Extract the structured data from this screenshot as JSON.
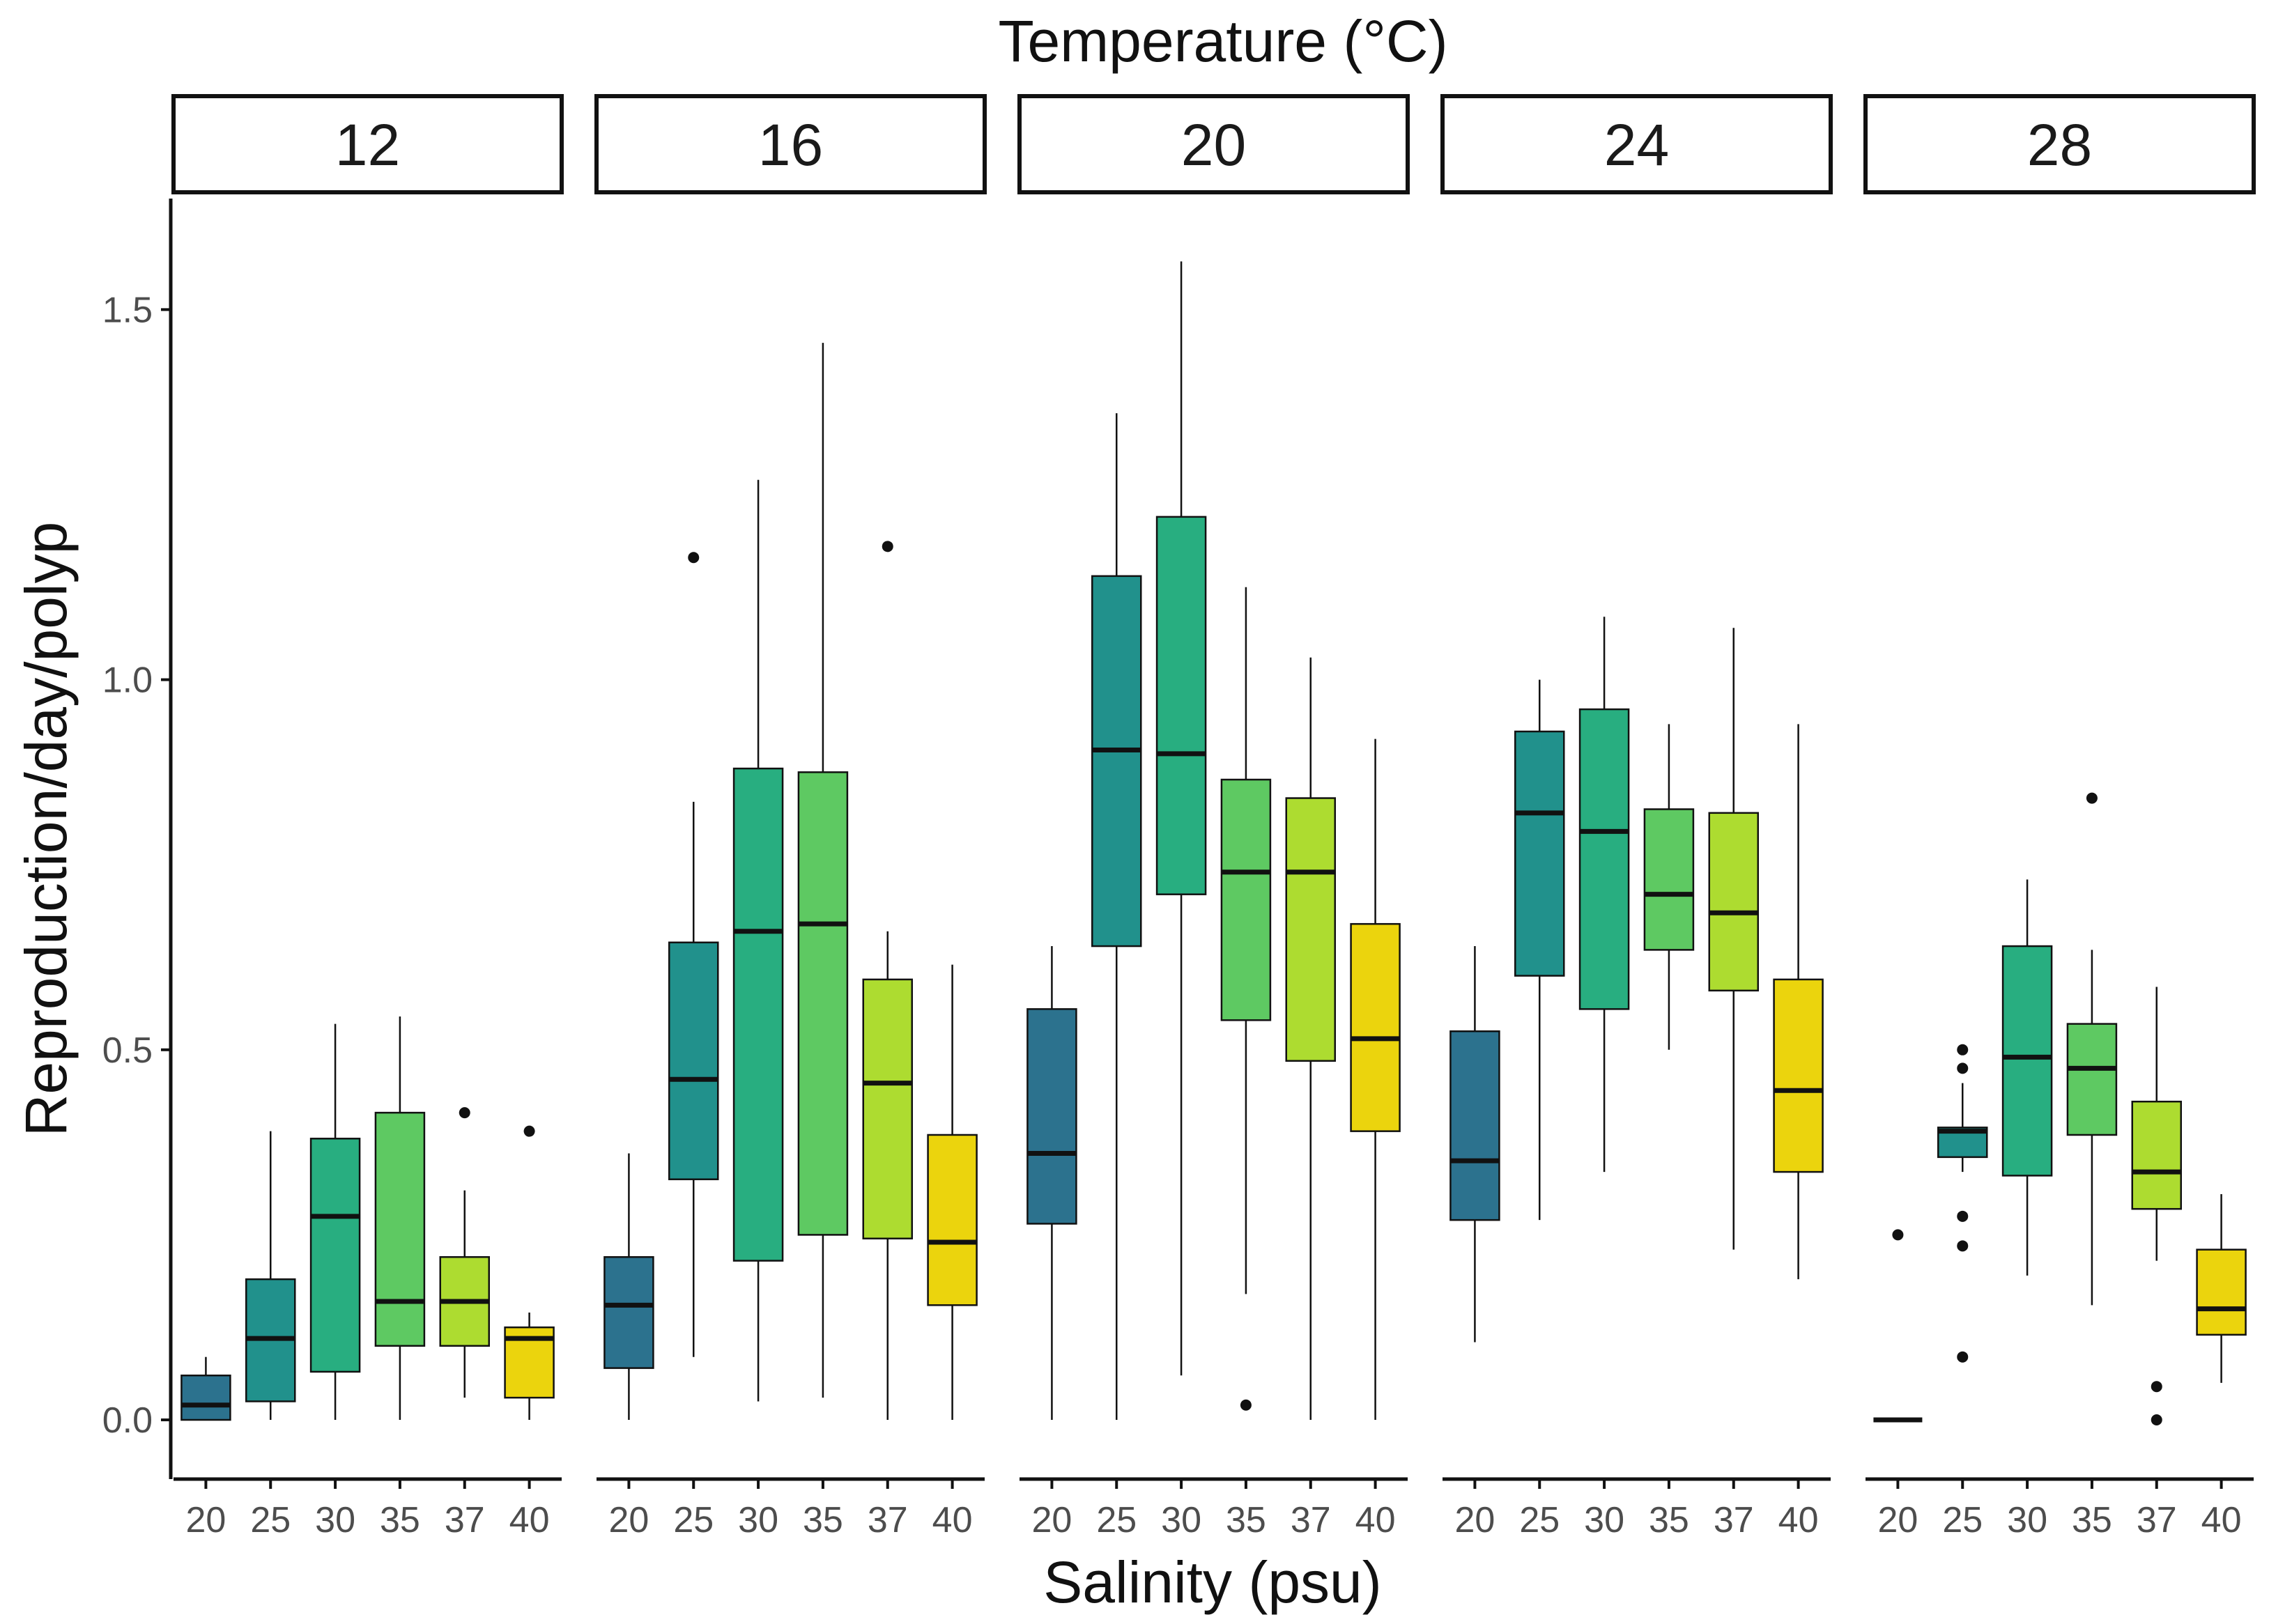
{
  "chart_data": {
    "type": "boxplot",
    "title": "Temperature (°C)",
    "xlabel": "Salinity (psu)",
    "ylabel": "Reproduction/day/polyp",
    "ylim": [
      -0.08,
      1.65
    ],
    "yticks": [
      "0.0",
      "0.5",
      "1.0",
      "1.5"
    ],
    "ytick_values": [
      0,
      0.5,
      1.0,
      1.5
    ],
    "categories": [
      "20",
      "25",
      "30",
      "35",
      "37",
      "40"
    ],
    "colors": {
      "20": "#2c728e",
      "25": "#21918c",
      "30": "#28ae80",
      "35": "#5ec962",
      "37": "#addc30",
      "40": "#ebd40d"
    },
    "panels": [
      {
        "label": "12",
        "boxes": [
          {
            "salinity": "20",
            "min": 0.0,
            "q1": 0.0,
            "median": 0.02,
            "q3": 0.06,
            "max": 0.085,
            "outliers": []
          },
          {
            "salinity": "25",
            "min": 0.0,
            "q1": 0.025,
            "median": 0.11,
            "q3": 0.19,
            "max": 0.39,
            "outliers": []
          },
          {
            "salinity": "30",
            "min": 0.0,
            "q1": 0.065,
            "median": 0.275,
            "q3": 0.38,
            "max": 0.535,
            "outliers": []
          },
          {
            "salinity": "35",
            "min": 0.0,
            "q1": 0.1,
            "median": 0.16,
            "q3": 0.415,
            "max": 0.545,
            "outliers": []
          },
          {
            "salinity": "37",
            "min": 0.03,
            "q1": 0.1,
            "median": 0.16,
            "q3": 0.22,
            "max": 0.31,
            "outliers": [
              0.415
            ]
          },
          {
            "salinity": "40",
            "min": 0.0,
            "q1": 0.03,
            "median": 0.11,
            "q3": 0.125,
            "max": 0.145,
            "outliers": [
              0.39
            ]
          }
        ]
      },
      {
        "label": "16",
        "boxes": [
          {
            "salinity": "20",
            "min": 0.0,
            "q1": 0.07,
            "median": 0.155,
            "q3": 0.22,
            "max": 0.36,
            "outliers": []
          },
          {
            "salinity": "25",
            "min": 0.085,
            "q1": 0.325,
            "median": 0.46,
            "q3": 0.645,
            "max": 0.835,
            "outliers": [
              1.165
            ]
          },
          {
            "salinity": "30",
            "min": 0.025,
            "q1": 0.215,
            "median": 0.66,
            "q3": 0.88,
            "max": 1.27,
            "outliers": []
          },
          {
            "salinity": "35",
            "min": 0.03,
            "q1": 0.25,
            "median": 0.67,
            "q3": 0.875,
            "max": 1.455,
            "outliers": []
          },
          {
            "salinity": "37",
            "min": 0.0,
            "q1": 0.245,
            "median": 0.455,
            "q3": 0.595,
            "max": 0.66,
            "outliers": [
              1.18
            ]
          },
          {
            "salinity": "40",
            "min": 0.0,
            "q1": 0.155,
            "median": 0.24,
            "q3": 0.385,
            "max": 0.615,
            "outliers": []
          }
        ]
      },
      {
        "label": "20",
        "boxes": [
          {
            "salinity": "20",
            "min": 0.0,
            "q1": 0.265,
            "median": 0.36,
            "q3": 0.555,
            "max": 0.64,
            "outliers": []
          },
          {
            "salinity": "25",
            "min": 0.0,
            "q1": 0.64,
            "median": 0.905,
            "q3": 1.14,
            "max": 1.36,
            "outliers": []
          },
          {
            "salinity": "30",
            "min": 0.06,
            "q1": 0.71,
            "median": 0.9,
            "q3": 1.22,
            "max": 1.565,
            "outliers": []
          },
          {
            "salinity": "35",
            "min": 0.17,
            "q1": 0.54,
            "median": 0.74,
            "q3": 0.865,
            "max": 1.125,
            "outliers": [
              0.02
            ]
          },
          {
            "salinity": "37",
            "min": 0.0,
            "q1": 0.485,
            "median": 0.74,
            "q3": 0.84,
            "max": 1.03,
            "outliers": []
          },
          {
            "salinity": "40",
            "min": 0.0,
            "q1": 0.39,
            "median": 0.515,
            "q3": 0.67,
            "max": 0.92,
            "outliers": []
          }
        ]
      },
      {
        "label": "24",
        "boxes": [
          {
            "salinity": "20",
            "min": 0.105,
            "q1": 0.27,
            "median": 0.35,
            "q3": 0.525,
            "max": 0.64,
            "outliers": []
          },
          {
            "salinity": "25",
            "min": 0.27,
            "q1": 0.6,
            "median": 0.82,
            "q3": 0.93,
            "max": 1.0,
            "outliers": []
          },
          {
            "salinity": "30",
            "min": 0.335,
            "q1": 0.555,
            "median": 0.795,
            "q3": 0.96,
            "max": 1.085,
            "outliers": []
          },
          {
            "salinity": "35",
            "min": 0.5,
            "q1": 0.635,
            "median": 0.71,
            "q3": 0.825,
            "max": 0.94,
            "outliers": []
          },
          {
            "salinity": "37",
            "min": 0.23,
            "q1": 0.58,
            "median": 0.685,
            "q3": 0.82,
            "max": 1.07,
            "outliers": []
          },
          {
            "salinity": "40",
            "min": 0.19,
            "q1": 0.335,
            "median": 0.445,
            "q3": 0.595,
            "max": 0.94,
            "outliers": []
          }
        ]
      },
      {
        "label": "28",
        "boxes": [
          {
            "salinity": "20",
            "min": 0.0,
            "q1": 0.0,
            "median": 0.0,
            "q3": 0.0,
            "max": 0.0,
            "outliers": [
              0.25
            ]
          },
          {
            "salinity": "25",
            "min": 0.335,
            "q1": 0.355,
            "median": 0.39,
            "q3": 0.395,
            "max": 0.455,
            "outliers": [
              0.5,
              0.475,
              0.275,
              0.235,
              0.085
            ]
          },
          {
            "salinity": "30",
            "min": 0.195,
            "q1": 0.33,
            "median": 0.49,
            "q3": 0.64,
            "max": 0.73,
            "outliers": []
          },
          {
            "salinity": "35",
            "min": 0.155,
            "q1": 0.385,
            "median": 0.475,
            "q3": 0.535,
            "max": 0.635,
            "outliers": [
              0.84
            ]
          },
          {
            "salinity": "37",
            "min": 0.215,
            "q1": 0.285,
            "median": 0.335,
            "q3": 0.43,
            "max": 0.585,
            "outliers": [
              0.045,
              0.0
            ]
          },
          {
            "salinity": "40",
            "min": 0.05,
            "q1": 0.115,
            "median": 0.15,
            "q3": 0.23,
            "max": 0.305,
            "outliers": []
          }
        ]
      }
    ]
  }
}
